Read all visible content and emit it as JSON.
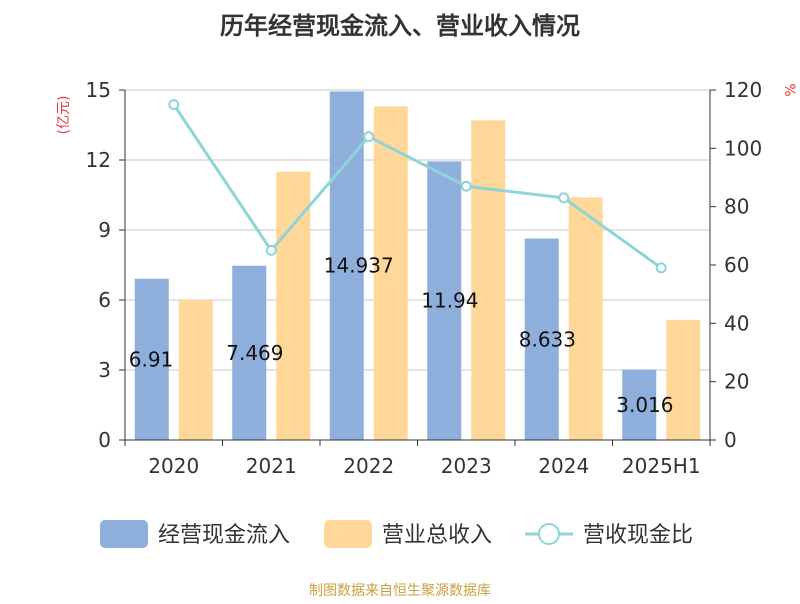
{
  "chart_data": {
    "type": "bar",
    "title": "历年经营现金流入、营业收入情况",
    "categories": [
      "2020",
      "2021",
      "2022",
      "2023",
      "2024",
      "2025H1"
    ],
    "ylabel_left": "(亿元)",
    "ylabel_right": "%",
    "ylim_left": [
      0,
      15
    ],
    "ylim_right": [
      0,
      120
    ],
    "yticks_left": [
      "0",
      "3",
      "6",
      "9",
      "12",
      "15"
    ],
    "yticks_right": [
      "0",
      "20",
      "40",
      "60",
      "80",
      "100",
      "120"
    ],
    "grid": true,
    "legend_position": "bottom",
    "series": [
      {
        "name": "经营现金流入",
        "kind": "bar",
        "axis": "left",
        "color": "#8eaedb",
        "values": [
          6.91,
          7.469,
          14.937,
          11.94,
          8.633,
          3.016
        ],
        "labels": [
          "6.91",
          "7.469",
          "14.937",
          "11.94",
          "8.633",
          "3.016"
        ]
      },
      {
        "name": "营业总收入",
        "kind": "bar",
        "axis": "left",
        "color": "#ffd899",
        "values": [
          6.0,
          11.5,
          14.3,
          13.7,
          10.4,
          5.15
        ]
      },
      {
        "name": "营收现金比",
        "kind": "line",
        "axis": "right",
        "color": "#8fd4d8",
        "values": [
          115,
          65,
          104,
          87,
          83,
          59
        ]
      }
    ],
    "source": "制图数据来自恒生聚源数据库"
  }
}
